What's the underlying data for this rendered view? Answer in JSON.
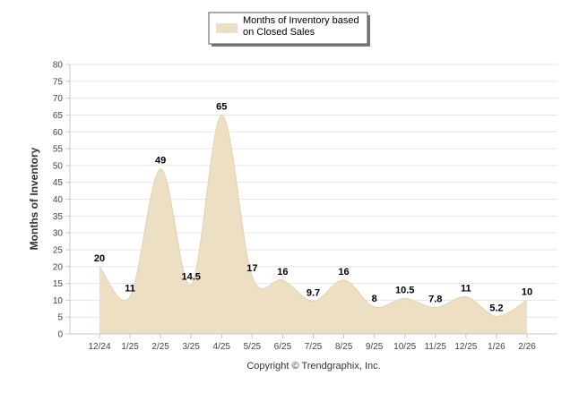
{
  "chart_data": {
    "type": "area",
    "categories": [
      "12/24",
      "1/25",
      "2/25",
      "3/25",
      "4/25",
      "5/25",
      "6/25",
      "7/25",
      "8/25",
      "9/25",
      "10/25",
      "11/25",
      "12/25",
      "1/26",
      "2/26"
    ],
    "series": [
      {
        "name": "Months of Inventory based on Closed Sales",
        "values": [
          20,
          11,
          49,
          14.5,
          65,
          17,
          16,
          9.7,
          16,
          8,
          10.5,
          7.8,
          11,
          5.2,
          10
        ],
        "labels": [
          "20",
          "11",
          "49",
          "14.5",
          "65",
          "17",
          "16",
          "9.7",
          "16",
          "8",
          "10.5",
          "7.8",
          "11",
          "5.2",
          "10"
        ]
      }
    ],
    "legend_lines": [
      "Months of Inventory based",
      "on Closed Sales"
    ],
    "xlabel": "",
    "ylabel": "Months of Inventory",
    "ylim": [
      0,
      80
    ],
    "yticks": [
      "0",
      "5",
      "10",
      "15",
      "20",
      "25",
      "30",
      "35",
      "40",
      "45",
      "50",
      "55",
      "60",
      "65",
      "70",
      "75",
      "80"
    ],
    "grid": true,
    "legend_position": "top-center",
    "copyright": "Copyright © Trendgraphix, Inc.",
    "colors": {
      "area_fill": "#eddfc4",
      "area_stroke": "#e3d2ae",
      "grid": "#e6e6e6",
      "axis": "#c8c8c8",
      "label_text": "#000000",
      "tick_text": "#444444"
    }
  }
}
